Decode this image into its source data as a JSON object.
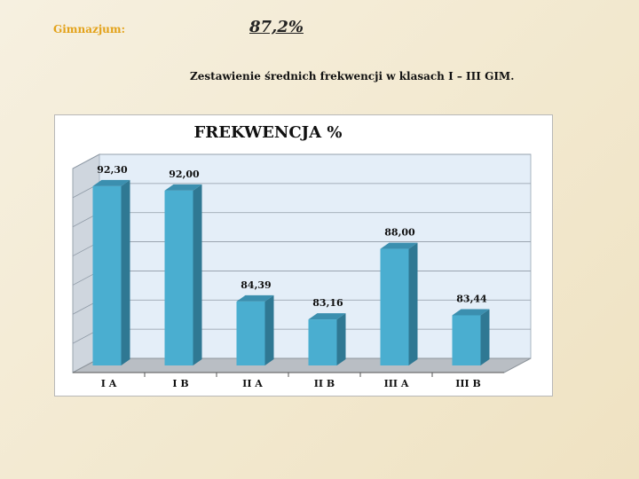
{
  "header": {
    "school_label": "Gimnazjum:",
    "overall_value": "87,2%",
    "caption": "Zestawienie średnich frekwencji w klasach I – III GIM."
  },
  "colors": {
    "bar_front": "#4aaed0",
    "bar_side": "#2f7893",
    "bar_top": "#3b8faf",
    "wall": "#e4eef8",
    "grid": "#8f9aa6"
  },
  "chart_data": {
    "type": "bar",
    "title": "FREKWENCJA  %",
    "categories": [
      "I A",
      "I B",
      "II A",
      "II B",
      "III A",
      "III B"
    ],
    "values": [
      92.3,
      92.0,
      84.39,
      83.16,
      88.0,
      83.44
    ],
    "value_labels": [
      "92,30",
      "92,00",
      "84,39",
      "83,16",
      "88,00",
      "83,44"
    ],
    "ylim": [
      80,
      94
    ],
    "grid": true,
    "legend": "none",
    "style": "3d-column"
  }
}
